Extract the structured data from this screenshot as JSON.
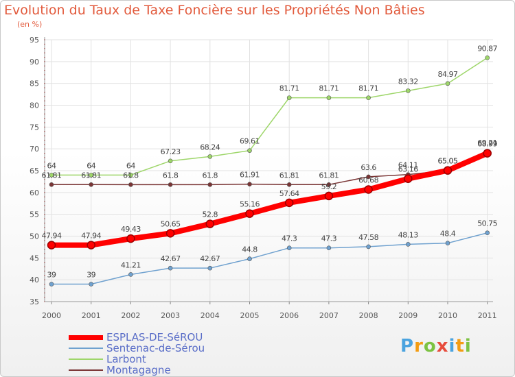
{
  "title": "Evolution du Taux de Taxe Foncière sur les Propriétés Non Bâties",
  "unit_label": "(en %)",
  "logo_text": "Proxiti",
  "colors": {
    "title": "#e25a3c",
    "axis": "#cc3333",
    "grid": "#e2e2e2"
  },
  "chart_data": {
    "type": "line",
    "title": "Evolution du Taux de Taxe Foncière sur les Propriétés Non Bâties",
    "xlabel": "",
    "ylabel": "(en %)",
    "ylim": [
      35,
      95
    ],
    "yticks": [
      35,
      40,
      45,
      50,
      55,
      60,
      65,
      70,
      75,
      80,
      85,
      90,
      95
    ],
    "grid": true,
    "categories": [
      "2000",
      "2001",
      "2002",
      "2003",
      "2004",
      "2005",
      "2006",
      "2007",
      "2008",
      "2009",
      "2010",
      "2011"
    ],
    "series": [
      {
        "name": "ESPLAS-DE-SéROU",
        "color": "#ff0000",
        "values": [
          47.94,
          47.94,
          49.43,
          50.65,
          52.8,
          55.16,
          57.64,
          59.2,
          60.68,
          63.16,
          65.05,
          68.99
        ],
        "labels": [
          "47.94",
          "47.94",
          "49.43",
          "50.65",
          "52.8",
          "55.16",
          "57.64",
          "59.2",
          "60.68",
          "63.16",
          "65.05",
          "68.99"
        ]
      },
      {
        "name": "Sentenac-de-Sérou",
        "color": "#6fa1cf",
        "values": [
          39,
          39,
          41.21,
          42.67,
          42.67,
          44.8,
          47.3,
          47.3,
          47.58,
          48.13,
          48.4,
          50.75
        ],
        "labels": [
          "39",
          "39",
          "41.21",
          "42.67",
          "42.67",
          "44.8",
          "47.3",
          "47.3",
          "47.58",
          "48.13",
          "48.4",
          "50.75"
        ]
      },
      {
        "name": "Larbont",
        "color": "#9ed66a",
        "values": [
          64,
          64,
          64,
          67.23,
          68.24,
          69.61,
          81.71,
          81.71,
          81.71,
          83.32,
          84.97,
          90.87
        ],
        "labels": [
          "64",
          "64",
          "64",
          "67.23",
          "68.24",
          "69.61",
          "81.71",
          "81.71",
          "81.71",
          "83.32",
          "84.97",
          "90.87"
        ]
      },
      {
        "name": "Montagagne",
        "color": "#7a3535",
        "values": [
          61.81,
          61.81,
          61.8,
          61.8,
          61.8,
          61.91,
          61.81,
          61.81,
          63.6,
          64.11,
          65.05,
          69.21
        ],
        "labels": [
          "61.81",
          "61.81",
          "61.8",
          "61.8",
          "61.8",
          "61.91",
          "61.81",
          "61.81",
          "63.6",
          "64.11",
          "65.05",
          "69.21"
        ]
      }
    ]
  }
}
